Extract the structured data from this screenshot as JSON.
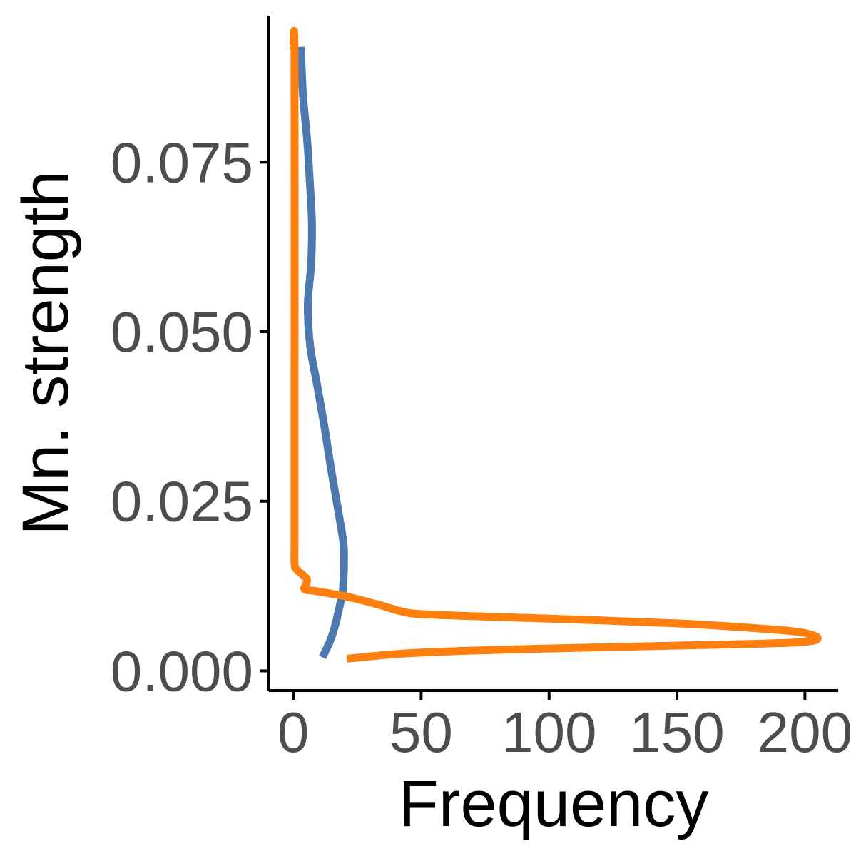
{
  "chart_data": {
    "type": "line",
    "xlabel": "Frequency",
    "ylabel": "Mn. strength",
    "xlim": [
      -9.5,
      213
    ],
    "ylim": [
      -0.0029,
      0.0966
    ],
    "x_ticks": [
      0,
      50,
      100,
      150,
      200
    ],
    "y_ticks": [
      0.0,
      0.025,
      0.05,
      0.075
    ],
    "x_tick_labels": [
      "0",
      "50",
      "100",
      "150",
      "200"
    ],
    "y_tick_labels": [
      "0.000",
      "0.025",
      "0.050",
      "0.075"
    ],
    "grid": false,
    "legend": "none",
    "series": [
      {
        "color": "#4e79b0",
        "points": [
          [
            3.0,
            0.092
          ],
          [
            3.8,
            0.085
          ],
          [
            5.5,
            0.078
          ],
          [
            6.5,
            0.072
          ],
          [
            7.3,
            0.066
          ],
          [
            7.0,
            0.06
          ],
          [
            5.7,
            0.054
          ],
          [
            6.6,
            0.048
          ],
          [
            9.4,
            0.042
          ],
          [
            12.2,
            0.036
          ],
          [
            14.7,
            0.03
          ],
          [
            17.4,
            0.024
          ],
          [
            19.2,
            0.02
          ],
          [
            19.8,
            0.018
          ],
          [
            19.8,
            0.015
          ],
          [
            19.4,
            0.012
          ],
          [
            18.4,
            0.01
          ],
          [
            16.6,
            0.007
          ],
          [
            14.5,
            0.0045
          ],
          [
            11.4,
            0.002
          ]
        ]
      },
      {
        "color": "#ff7f0e",
        "points": [
          [
            0.0,
            0.092
          ],
          [
            0.5,
            0.09
          ],
          [
            0.5,
            0.04
          ],
          [
            0.5,
            0.02
          ],
          [
            0.5,
            0.016
          ],
          [
            1.2,
            0.015
          ],
          [
            4.2,
            0.014
          ],
          [
            5.4,
            0.0135
          ],
          [
            5.1,
            0.0128
          ],
          [
            4.3,
            0.0122
          ],
          [
            5.1,
            0.0119
          ],
          [
            8.0,
            0.0118
          ],
          [
            20.0,
            0.011
          ],
          [
            33.0,
            0.0098
          ],
          [
            42.0,
            0.0088
          ],
          [
            53.0,
            0.0083
          ],
          [
            100.0,
            0.0077
          ],
          [
            150.0,
            0.007
          ],
          [
            180.0,
            0.0063
          ],
          [
            198.0,
            0.0057
          ],
          [
            205.0,
            0.0048
          ],
          [
            197.0,
            0.0042
          ],
          [
            160.0,
            0.0038
          ],
          [
            100.0,
            0.0033
          ],
          [
            50.0,
            0.0027
          ],
          [
            21.0,
            0.0018
          ]
        ]
      }
    ]
  }
}
